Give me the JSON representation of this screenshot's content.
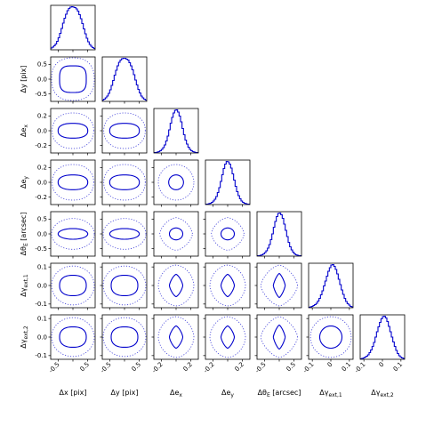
{
  "chart_data": {
    "type": "corner",
    "color": "#0000cc",
    "variables": [
      {
        "key": "dx",
        "label": "Δx [pix]",
        "range": [
          -0.75,
          0.75
        ],
        "ticks": [
          -0.5,
          0.0,
          0.5
        ],
        "tick_labels": [
          "-0.5",
          "0.0",
          "0.5"
        ]
      },
      {
        "key": "dy",
        "label": "Δy [pix]",
        "range": [
          -0.75,
          0.75
        ],
        "ticks": [
          -0.5,
          0.0,
          0.5
        ],
        "tick_labels": [
          "-0.5",
          "0.0",
          "0.5"
        ]
      },
      {
        "key": "dex",
        "label": "Δe_x",
        "range": [
          -0.3,
          0.3
        ],
        "ticks": [
          -0.2,
          0.0,
          0.2
        ],
        "tick_labels": [
          "-0.2",
          "0.0",
          "0.2"
        ]
      },
      {
        "key": "dey",
        "label": "Δe_y",
        "range": [
          -0.3,
          0.3
        ],
        "ticks": [
          -0.2,
          0.0,
          0.2
        ],
        "tick_labels": [
          "-0.2",
          "0.0",
          "0.2"
        ]
      },
      {
        "key": "dthetaE",
        "label": "Δθ_E [arcsec]",
        "range": [
          -0.75,
          0.75
        ],
        "ticks": [
          -0.5,
          0.0,
          0.5
        ],
        "tick_labels": [
          "-0.5",
          "0.0",
          "0.5"
        ]
      },
      {
        "key": "dgext1",
        "label": "Δγ_ext,1",
        "range": [
          -0.12,
          0.12
        ],
        "ticks": [
          -0.1,
          0.0,
          0.1
        ],
        "tick_labels": [
          "-0.1",
          "0.0",
          "0.1"
        ],
        "bottom_tick_labels": [
          "-0.1",
          "0",
          "0.1"
        ]
      },
      {
        "key": "dgext2",
        "label": "Δγ_ext,2",
        "range": [
          -0.12,
          0.12
        ],
        "ticks": [
          -0.1,
          0.0,
          0.1
        ],
        "tick_labels": [
          "-0.1",
          "0.0",
          "0.1"
        ],
        "bottom_tick_labels": [
          "-0.1",
          "0",
          "0.1"
        ]
      }
    ],
    "marginals": {
      "dx": [
        0.04,
        0.06,
        0.09,
        0.13,
        0.19,
        0.27,
        0.37,
        0.48,
        0.6,
        0.71,
        0.8,
        0.88,
        0.93,
        0.96,
        0.97,
        0.96,
        0.95,
        0.92,
        0.87,
        0.79,
        0.7,
        0.59,
        0.47,
        0.36,
        0.26,
        0.18,
        0.12,
        0.08,
        0.05,
        0.03
      ],
      "dy": [
        0.03,
        0.05,
        0.08,
        0.12,
        0.18,
        0.26,
        0.36,
        0.47,
        0.59,
        0.7,
        0.8,
        0.88,
        0.93,
        0.96,
        0.97,
        0.97,
        0.95,
        0.93,
        0.87,
        0.8,
        0.71,
        0.6,
        0.48,
        0.37,
        0.27,
        0.19,
        0.12,
        0.08,
        0.05,
        0.03
      ],
      "dex": [
        0.01,
        0.01,
        0.02,
        0.03,
        0.05,
        0.08,
        0.12,
        0.18,
        0.27,
        0.38,
        0.52,
        0.67,
        0.8,
        0.9,
        0.96,
        0.97,
        0.92,
        0.83,
        0.7,
        0.55,
        0.41,
        0.29,
        0.2,
        0.13,
        0.08,
        0.05,
        0.03,
        0.02,
        0.01,
        0.01
      ],
      "dey": [
        0.01,
        0.01,
        0.02,
        0.03,
        0.05,
        0.08,
        0.12,
        0.18,
        0.27,
        0.38,
        0.52,
        0.67,
        0.81,
        0.91,
        0.97,
        0.96,
        0.91,
        0.82,
        0.69,
        0.55,
        0.41,
        0.29,
        0.2,
        0.13,
        0.08,
        0.05,
        0.03,
        0.02,
        0.01,
        0.01
      ],
      "dthetaE": [
        0.01,
        0.01,
        0.02,
        0.03,
        0.05,
        0.08,
        0.12,
        0.18,
        0.26,
        0.37,
        0.5,
        0.65,
        0.78,
        0.89,
        0.96,
        0.97,
        0.93,
        0.85,
        0.72,
        0.58,
        0.44,
        0.31,
        0.21,
        0.14,
        0.09,
        0.05,
        0.03,
        0.02,
        0.01,
        0.01
      ],
      "dgext1": [
        0.01,
        0.02,
        0.03,
        0.05,
        0.07,
        0.1,
        0.15,
        0.21,
        0.29,
        0.38,
        0.49,
        0.6,
        0.71,
        0.82,
        0.9,
        0.96,
        0.97,
        0.93,
        0.86,
        0.76,
        0.64,
        0.52,
        0.4,
        0.3,
        0.21,
        0.14,
        0.09,
        0.06,
        0.03,
        0.02
      ],
      "dgext2": [
        0.01,
        0.02,
        0.03,
        0.05,
        0.07,
        0.1,
        0.15,
        0.21,
        0.29,
        0.38,
        0.5,
        0.62,
        0.73,
        0.83,
        0.91,
        0.96,
        0.97,
        0.93,
        0.85,
        0.74,
        0.62,
        0.5,
        0.39,
        0.29,
        0.2,
        0.13,
        0.08,
        0.05,
        0.03,
        0.02
      ]
    },
    "contours": {
      "levels": [
        "inner",
        "outer"
      ],
      "inner_line": "solid",
      "outer_line": "dotted",
      "ellipses": [
        {
          "x": "dx",
          "y": "dy",
          "inner": {
            "cx": 0.0,
            "cy": 0.0,
            "rx": 0.45,
            "ry": 0.45,
            "squareness": 3.2
          },
          "outer": {
            "cx": 0.0,
            "cy": 0.0,
            "rx": 0.72,
            "ry": 0.72,
            "squareness": 2.4
          }
        },
        {
          "x": "dx",
          "y": "dex",
          "inner": {
            "cx": 0.0,
            "cy": 0.0,
            "rx": 0.5,
            "ry": 0.1,
            "squareness": 2.4
          },
          "outer": {
            "cx": 0.0,
            "cy": 0.0,
            "rx": 0.7,
            "ry": 0.24,
            "squareness": 2.2
          }
        },
        {
          "x": "dy",
          "y": "dex",
          "inner": {
            "cx": 0.0,
            "cy": 0.0,
            "rx": 0.5,
            "ry": 0.1,
            "squareness": 2.4
          },
          "outer": {
            "cx": 0.0,
            "cy": 0.0,
            "rx": 0.7,
            "ry": 0.24,
            "squareness": 2.2
          }
        },
        {
          "x": "dx",
          "y": "dey",
          "inner": {
            "cx": 0.0,
            "cy": 0.0,
            "rx": 0.5,
            "ry": 0.1,
            "squareness": 2.3
          },
          "outer": {
            "cx": 0.0,
            "cy": 0.0,
            "rx": 0.7,
            "ry": 0.24,
            "squareness": 2.2
          }
        },
        {
          "x": "dy",
          "y": "dey",
          "inner": {
            "cx": 0.0,
            "cy": 0.0,
            "rx": 0.5,
            "ry": 0.1,
            "squareness": 2.3
          },
          "outer": {
            "cx": 0.0,
            "cy": 0.0,
            "rx": 0.7,
            "ry": 0.24,
            "squareness": 2.2
          }
        },
        {
          "x": "dex",
          "y": "dey",
          "inner": {
            "cx": 0.0,
            "cy": 0.0,
            "rx": 0.1,
            "ry": 0.1,
            "squareness": 2.0
          },
          "outer": {
            "cx": 0.0,
            "cy": 0.0,
            "rx": 0.24,
            "ry": 0.24,
            "squareness": 2.0
          }
        },
        {
          "x": "dx",
          "y": "dthetaE",
          "inner": {
            "cx": 0.0,
            "cy": 0.0,
            "rx": 0.5,
            "ry": 0.18,
            "squareness": 2.0
          },
          "outer": {
            "cx": 0.0,
            "cy": 0.0,
            "rx": 0.72,
            "ry": 0.52,
            "squareness": 2.0
          }
        },
        {
          "x": "dy",
          "y": "dthetaE",
          "inner": {
            "cx": 0.0,
            "cy": 0.0,
            "rx": 0.5,
            "ry": 0.18,
            "squareness": 2.0
          },
          "outer": {
            "cx": 0.0,
            "cy": 0.0,
            "rx": 0.72,
            "ry": 0.52,
            "squareness": 2.0
          }
        },
        {
          "x": "dex",
          "y": "dthetaE",
          "inner": {
            "cx": 0.0,
            "cy": 0.0,
            "rx": 0.09,
            "ry": 0.2,
            "squareness": 2.0
          },
          "outer": {
            "cx": 0.0,
            "cy": 0.0,
            "rx": 0.22,
            "ry": 0.55,
            "squareness": 1.6
          }
        },
        {
          "x": "dey",
          "y": "dthetaE",
          "inner": {
            "cx": 0.0,
            "cy": 0.0,
            "rx": 0.09,
            "ry": 0.2,
            "squareness": 2.0
          },
          "outer": {
            "cx": 0.0,
            "cy": 0.0,
            "rx": 0.22,
            "ry": 0.55,
            "squareness": 1.6
          }
        },
        {
          "x": "dx",
          "y": "dgext1",
          "inner": {
            "cx": 0.0,
            "cy": 0.0,
            "rx": 0.45,
            "ry": 0.055,
            "squareness": 2.4
          },
          "outer": {
            "cx": 0.0,
            "cy": 0.0,
            "rx": 0.72,
            "ry": 0.105,
            "squareness": 2.0
          }
        },
        {
          "x": "dy",
          "y": "dgext1",
          "inner": {
            "cx": 0.0,
            "cy": 0.0,
            "rx": 0.45,
            "ry": 0.055,
            "squareness": 2.4
          },
          "outer": {
            "cx": 0.0,
            "cy": 0.0,
            "rx": 0.72,
            "ry": 0.105,
            "squareness": 2.0
          }
        },
        {
          "x": "dex",
          "y": "dgext1",
          "inner": {
            "cx": 0.0,
            "cy": 0.0,
            "rx": 0.09,
            "ry": 0.06,
            "squareness": 1.4
          },
          "outer": {
            "cx": 0.0,
            "cy": 0.0,
            "rx": 0.24,
            "ry": 0.11,
            "squareness": 1.8
          }
        },
        {
          "x": "dey",
          "y": "dgext1",
          "inner": {
            "cx": 0.0,
            "cy": 0.0,
            "rx": 0.09,
            "ry": 0.06,
            "squareness": 1.4
          },
          "outer": {
            "cx": 0.0,
            "cy": 0.0,
            "rx": 0.24,
            "ry": 0.11,
            "squareness": 1.8
          }
        },
        {
          "x": "dthetaE",
          "y": "dgext1",
          "inner": {
            "cx": 0.0,
            "cy": 0.0,
            "rx": 0.2,
            "ry": 0.065,
            "squareness": 1.3
          },
          "outer": {
            "cx": 0.0,
            "cy": 0.0,
            "rx": 0.62,
            "ry": 0.11,
            "squareness": 1.5
          }
        },
        {
          "x": "dx",
          "y": "dgext2",
          "inner": {
            "cx": 0.0,
            "cy": 0.0,
            "rx": 0.45,
            "ry": 0.055,
            "squareness": 2.4
          },
          "outer": {
            "cx": 0.0,
            "cy": 0.0,
            "rx": 0.72,
            "ry": 0.105,
            "squareness": 2.0
          }
        },
        {
          "x": "dy",
          "y": "dgext2",
          "inner": {
            "cx": 0.0,
            "cy": 0.0,
            "rx": 0.45,
            "ry": 0.055,
            "squareness": 2.4
          },
          "outer": {
            "cx": 0.0,
            "cy": 0.0,
            "rx": 0.72,
            "ry": 0.105,
            "squareness": 2.0
          }
        },
        {
          "x": "dex",
          "y": "dgext2",
          "inner": {
            "cx": 0.0,
            "cy": 0.0,
            "rx": 0.09,
            "ry": 0.06,
            "squareness": 1.4
          },
          "outer": {
            "cx": 0.0,
            "cy": 0.0,
            "rx": 0.24,
            "ry": 0.11,
            "squareness": 1.8
          }
        },
        {
          "x": "dey",
          "y": "dgext2",
          "inner": {
            "cx": 0.0,
            "cy": 0.0,
            "rx": 0.09,
            "ry": 0.06,
            "squareness": 1.4
          },
          "outer": {
            "cx": 0.0,
            "cy": 0.0,
            "rx": 0.24,
            "ry": 0.11,
            "squareness": 1.8
          }
        },
        {
          "x": "dthetaE",
          "y": "dgext2",
          "inner": {
            "cx": 0.0,
            "cy": 0.0,
            "rx": 0.2,
            "ry": 0.065,
            "squareness": 1.3
          },
          "outer": {
            "cx": 0.0,
            "cy": 0.0,
            "rx": 0.62,
            "ry": 0.11,
            "squareness": 1.5
          }
        },
        {
          "x": "dgext1",
          "y": "dgext2",
          "inner": {
            "cx": 0.0,
            "cy": 0.0,
            "rx": 0.06,
            "ry": 0.06,
            "squareness": 2.0
          },
          "outer": {
            "cx": 0.0,
            "cy": 0.0,
            "rx": 0.11,
            "ry": 0.11,
            "squareness": 2.0
          }
        }
      ]
    }
  }
}
